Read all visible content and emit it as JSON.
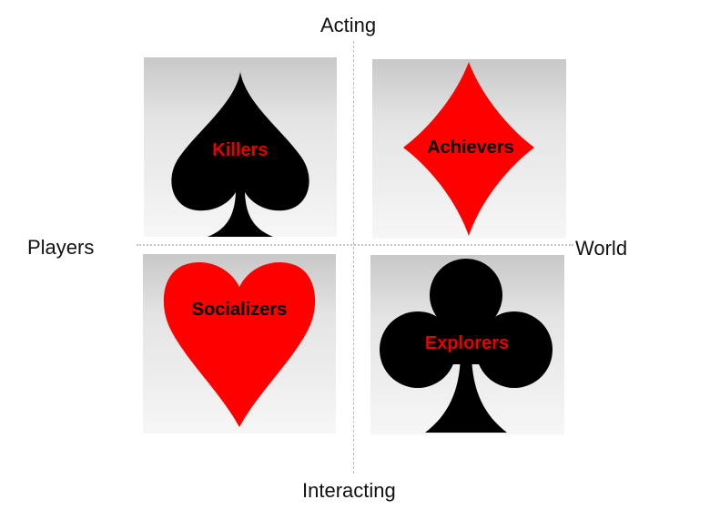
{
  "axes": {
    "top": "Acting",
    "bottom": "Interacting",
    "left": "Players",
    "right": "World"
  },
  "quadrants": [
    {
      "position": "top-left",
      "label": "Killers",
      "suit": "spade",
      "suit_color": "#000000",
      "label_color": "#e60000"
    },
    {
      "position": "top-right",
      "label": "Achievers",
      "suit": "diamond",
      "suit_color": "#ff0000",
      "label_color": "#000000"
    },
    {
      "position": "bottom-left",
      "label": "Socializers",
      "suit": "heart",
      "suit_color": "#ff0000",
      "label_color": "#000000"
    },
    {
      "position": "bottom-right",
      "label": "Explorers",
      "suit": "club",
      "suit_color": "#000000",
      "label_color": "#e60000"
    }
  ]
}
